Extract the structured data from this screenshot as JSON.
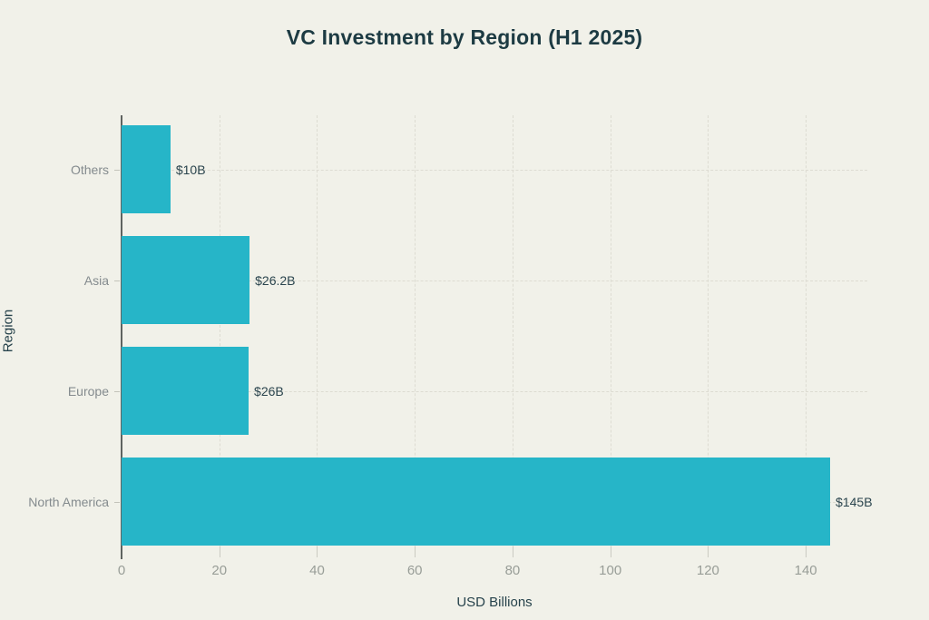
{
  "chart_data": {
    "type": "bar",
    "orientation": "horizontal",
    "title": "VC Investment by Region (H1 2025)",
    "xlabel": "USD Billions",
    "ylabel": "Region",
    "categories": [
      "Others",
      "Asia",
      "Europe",
      "North America"
    ],
    "values": [
      10,
      26.2,
      26,
      145
    ],
    "value_labels": [
      "$10B",
      "$26.2B",
      "$26B",
      "$145B"
    ],
    "xticks": [
      0,
      20,
      40,
      60,
      80,
      100,
      120,
      140
    ],
    "xlim": [
      0,
      152.6
    ],
    "grid": true,
    "legend": "none",
    "colors": {
      "bar": "#26b5c8",
      "background": "#f1f1e9",
      "title_text": "#1d3b43",
      "value_text": "#2b454e",
      "category_text": "#848b8e",
      "tick_text": "#989d97",
      "axis_line": "#5f6360",
      "gridline": "#dddcd2"
    }
  }
}
